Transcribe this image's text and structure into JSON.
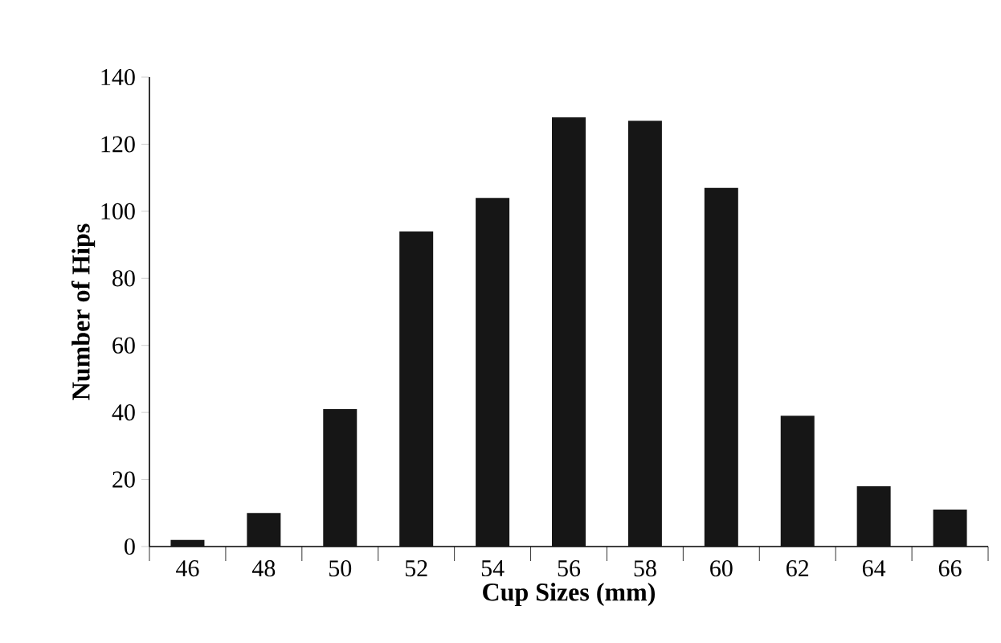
{
  "chart_data": {
    "type": "bar",
    "xlabel": "Cup Sizes (mm)",
    "ylabel": "Number of Hips",
    "categories": [
      "46",
      "48",
      "50",
      "52",
      "54",
      "56",
      "58",
      "60",
      "62",
      "64",
      "66"
    ],
    "values": [
      2,
      10,
      41,
      94,
      104,
      128,
      127,
      107,
      39,
      18,
      11
    ],
    "color": "#161616",
    "ylim": [
      0,
      140
    ],
    "yticks": [
      0,
      20,
      40,
      60,
      80,
      100,
      120,
      140
    ],
    "grid": false
  }
}
